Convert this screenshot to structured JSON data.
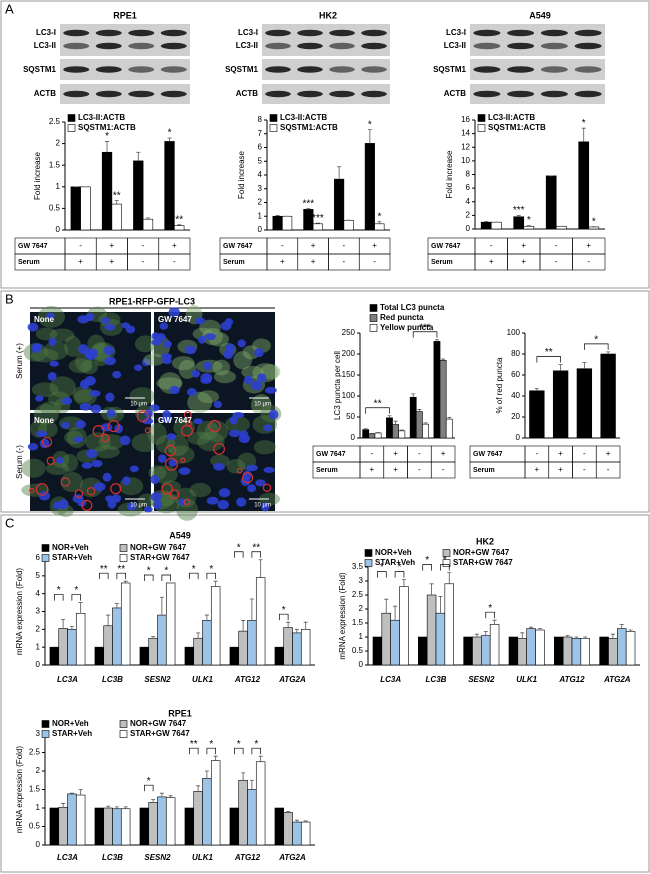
{
  "figure": {
    "panels": [
      "A",
      "B",
      "C"
    ],
    "blots": [
      {
        "labels": [
          "LC3-I",
          "LC3-II",
          "SQSTM1",
          "ACTB"
        ]
      },
      {
        "labels": [
          "LC3-I",
          "LC3-II",
          "SQSTM1",
          "ACTB"
        ]
      },
      {
        "labels": [
          "LC3-I",
          "LC3-II",
          "SQSTM1",
          "ACTB"
        ]
      }
    ],
    "microscopy": {
      "title": "RPE1-RFP-GFP-LC3",
      "image_labels": [
        "None",
        "GW 7647",
        "None",
        "GW 7647"
      ],
      "row_labels": [
        "Serum (+)",
        "Serum (-)"
      ],
      "scale_bar": "10 μm"
    }
  },
  "chart_data": [
    {
      "type": "bar",
      "title": "RPE1",
      "y_label": "Fold increase",
      "conditions": {
        "labels": [
          "GW 7647",
          "Serum"
        ],
        "rows": [
          [
            "-",
            "+",
            "-",
            "+"
          ],
          [
            "+",
            "+",
            "-",
            "-"
          ]
        ]
      },
      "series": [
        {
          "name": "LC3-II:ACTB",
          "color": "#000000",
          "values": [
            1,
            1.8,
            1.6,
            2.05
          ],
          "errors": [
            0,
            0.25,
            0.2,
            0.08
          ]
        },
        {
          "name": "SQSTM1:ACTB",
          "color": "#ffffff",
          "values": [
            1,
            0.6,
            0.25,
            0.1
          ],
          "errors": [
            0,
            0.08,
            0.03,
            0.02
          ]
        }
      ],
      "ylim": [
        0,
        2.5
      ],
      "yticks": [
        0,
        0.5,
        1,
        1.5,
        2,
        2.5
      ],
      "annotations": [
        {
          "text": "*",
          "series": 0,
          "category": 1
        },
        {
          "text": "**",
          "series": 1,
          "category": 1
        },
        {
          "text": "*",
          "series": 0,
          "category": 3
        },
        {
          "text": "**",
          "series": 1,
          "category": 3
        }
      ]
    },
    {
      "type": "bar",
      "title": "HK2",
      "y_label": "Fold increase",
      "conditions": {
        "labels": [
          "GW 7647",
          "Serum"
        ],
        "rows": [
          [
            "-",
            "+",
            "-",
            "+"
          ],
          [
            "+",
            "+",
            "-",
            "-"
          ]
        ]
      },
      "series": [
        {
          "name": "LC3-II:ACTB",
          "color": "#000000",
          "values": [
            1,
            1.5,
            3.7,
            6.3
          ],
          "errors": [
            0.05,
            0.05,
            0.9,
            1.0
          ]
        },
        {
          "name": "SQSTM1:ACTB",
          "color": "#ffffff",
          "values": [
            1,
            0.45,
            0.7,
            0.45
          ],
          "errors": [
            0,
            0.05,
            0.02,
            0.15
          ]
        }
      ],
      "ylim": [
        0,
        8
      ],
      "yticks": [
        0,
        1,
        2,
        3,
        4,
        5,
        6,
        7,
        8
      ],
      "annotations": [
        {
          "text": "***",
          "series": 0,
          "category": 1
        },
        {
          "text": "***",
          "series": 1,
          "category": 1
        },
        {
          "text": "*",
          "series": 0,
          "category": 3
        },
        {
          "text": "*",
          "series": 1,
          "category": 3
        }
      ]
    },
    {
      "type": "bar",
      "title": "A549",
      "y_label": "Fold increase",
      "conditions": {
        "labels": [
          "GW 7647",
          "Serum"
        ],
        "rows": [
          [
            "-",
            "+",
            "-",
            "+"
          ],
          [
            "+",
            "+",
            "-",
            "-"
          ]
        ]
      },
      "series": [
        {
          "name": "LC3-II:ACTB",
          "color": "#000000",
          "values": [
            1,
            1.8,
            7.8,
            12.8
          ],
          "errors": [
            0.1,
            0.2,
            0,
            2
          ]
        },
        {
          "name": "SQSTM1:ACTB",
          "color": "#ffffff",
          "values": [
            1,
            0.4,
            0.4,
            0.3
          ],
          "errors": [
            0,
            0.1,
            0,
            0.05
          ]
        }
      ],
      "ylim": [
        0,
        16
      ],
      "yticks": [
        0,
        2,
        4,
        6,
        8,
        10,
        12,
        14,
        16
      ],
      "annotations": [
        {
          "text": "***",
          "series": 0,
          "category": 1
        },
        {
          "text": "*",
          "series": 1,
          "category": 1
        },
        {
          "text": "*",
          "series": 0,
          "category": 3
        },
        {
          "text": "*",
          "series": 1,
          "category": 3
        }
      ]
    },
    {
      "type": "bar",
      "y_label": "LC3 puncta per cell",
      "conditions": {
        "labels": [
          "GW 7647",
          "Serum"
        ],
        "rows": [
          [
            "-",
            "+",
            "-",
            "+"
          ],
          [
            "+",
            "+",
            "-",
            "-"
          ]
        ]
      },
      "series": [
        {
          "name": "Total LC3 puncta",
          "color": "#000000",
          "values": [
            20,
            48,
            97,
            230
          ],
          "errors": [
            2,
            5,
            8,
            4
          ]
        },
        {
          "name": "Red puncta",
          "color": "#7f7f7f",
          "values": [
            10,
            32,
            63,
            185
          ],
          "errors": [
            1,
            8,
            5,
            3
          ]
        },
        {
          "name": "Yellow puncta",
          "color": "#ffffff",
          "values": [
            12,
            17,
            33,
            45
          ],
          "errors": [
            1,
            2,
            3,
            4
          ]
        }
      ],
      "ylim": [
        0,
        250
      ],
      "yticks": [
        0,
        50,
        100,
        150,
        200,
        250
      ],
      "brackets": [
        {
          "text": "**",
          "from": [
            0,
            0
          ],
          "to": [
            0,
            1
          ]
        },
        {
          "text": "***",
          "from": [
            0,
            2
          ],
          "to": [
            0,
            3
          ]
        }
      ]
    },
    {
      "type": "bar",
      "y_label": "% of red puncta",
      "conditions": {
        "labels": [
          "GW 7647",
          "Serum"
        ],
        "rows": [
          [
            "-",
            "+",
            "-",
            "+"
          ],
          [
            "+",
            "+",
            "-",
            "-"
          ]
        ]
      },
      "values": [
        45,
        64,
        66,
        80
      ],
      "errors": [
        2,
        6,
        6,
        2
      ],
      "color": "#000000",
      "ylim": [
        0,
        100
      ],
      "yticks": [
        0,
        20,
        40,
        60,
        80,
        100
      ],
      "brackets": [
        {
          "text": "**",
          "from": [
            0,
            0
          ],
          "to": [
            0,
            1
          ]
        },
        {
          "text": "*",
          "from": [
            0,
            2
          ],
          "to": [
            0,
            3
          ]
        }
      ]
    },
    {
      "type": "bar",
      "title": "A549",
      "y_label": "mRNA expression (Fold)",
      "categories": [
        "LC3A",
        "LC3B",
        "SESN2",
        "ULK1",
        "ATG12",
        "ATG2A"
      ],
      "series": [
        {
          "name": "NOR+Veh",
          "color": "#000000",
          "values": [
            1,
            1,
            1,
            1,
            1,
            1
          ]
        },
        {
          "name": "NOR+GW 7647",
          "color": "#bfbfbf",
          "values": [
            2.05,
            2.2,
            1.5,
            1.5,
            1.9,
            2.1
          ],
          "errors": [
            0.5,
            0.6,
            0.1,
            0.3,
            0.6,
            0.3
          ]
        },
        {
          "name": "STAR+Veh",
          "color": "#9dc3e6",
          "values": [
            2.0,
            3.2,
            2.8,
            2.5,
            2.5,
            1.8
          ],
          "errors": [
            0.15,
            0.25,
            1.0,
            0.3,
            1.2,
            0.2
          ]
        },
        {
          "name": "STAR+GW 7647",
          "color": "#ffffff",
          "values": [
            2.9,
            4.6,
            4.6,
            4.4,
            4.9,
            2.0
          ],
          "errors": [
            0.6,
            0.1,
            0,
            0.3,
            1.0,
            0.4
          ]
        }
      ],
      "ylim": [
        0,
        6
      ],
      "yticks": [
        0,
        1,
        2,
        3,
        4,
        5,
        6
      ],
      "brackets": [
        {
          "text": "*",
          "from": [
            0,
            0
          ],
          "to": [
            1,
            0
          ]
        },
        {
          "text": "*",
          "from": [
            2,
            0
          ],
          "to": [
            3,
            0
          ]
        },
        {
          "text": "**",
          "from": [
            0,
            1
          ],
          "to": [
            1,
            1
          ]
        },
        {
          "text": "**",
          "from": [
            2,
            1
          ],
          "to": [
            3,
            1
          ]
        },
        {
          "text": "*",
          "from": [
            0,
            2
          ],
          "to": [
            1,
            2
          ]
        },
        {
          "text": "*",
          "from": [
            2,
            2
          ],
          "to": [
            3,
            2
          ]
        },
        {
          "text": "*",
          "from": [
            0,
            3
          ],
          "to": [
            1,
            3
          ]
        },
        {
          "text": "*",
          "from": [
            2,
            3
          ],
          "to": [
            3,
            3
          ]
        },
        {
          "text": "*",
          "from": [
            0,
            4
          ],
          "to": [
            1,
            4
          ]
        },
        {
          "text": "**",
          "from": [
            2,
            4
          ],
          "to": [
            3,
            4
          ]
        },
        {
          "text": "*",
          "from": [
            0,
            5
          ],
          "to": [
            1,
            5
          ]
        }
      ]
    },
    {
      "type": "bar",
      "title": "HK2",
      "y_label": "mRNA expression (Fold)",
      "categories": [
        "LC3A",
        "LC3B",
        "SESN2",
        "ULK1",
        "ATG12",
        "ATG2A"
      ],
      "series": [
        {
          "name": "NOR+Veh",
          "color": "#000000",
          "values": [
            1,
            1,
            1,
            1,
            1,
            1
          ]
        },
        {
          "name": "NOR+GW 7647",
          "color": "#bfbfbf",
          "values": [
            1.85,
            2.5,
            1.0,
            0.95,
            1.0,
            0.95
          ],
          "errors": [
            0.5,
            0.4,
            0.1,
            0.2,
            0.05,
            0.15
          ]
        },
        {
          "name": "STAR+Veh",
          "color": "#9dc3e6",
          "values": [
            1.6,
            1.85,
            1.05,
            1.3,
            0.95,
            1.3
          ],
          "errors": [
            0.5,
            0.6,
            0.15,
            0.05,
            0.05,
            0.15
          ]
        },
        {
          "name": "STAR+GW 7647",
          "color": "#ffffff",
          "values": [
            2.8,
            2.9,
            1.45,
            1.25,
            0.95,
            1.2
          ],
          "errors": [
            0.25,
            0.4,
            0.15,
            0.05,
            0.05,
            0.05
          ]
        }
      ],
      "ylim": [
        0,
        3.5
      ],
      "yticks": [
        0,
        0.5,
        1,
        1.5,
        2,
        2.5,
        3,
        3.5
      ],
      "brackets": [
        {
          "text": "*",
          "from": [
            0,
            0
          ],
          "to": [
            1,
            0
          ]
        },
        {
          "text": "*",
          "from": [
            2,
            0
          ],
          "to": [
            3,
            0
          ]
        },
        {
          "text": "*",
          "from": [
            0,
            1
          ],
          "to": [
            1,
            1
          ]
        },
        {
          "text": "*",
          "from": [
            2,
            1
          ],
          "to": [
            3,
            1
          ]
        },
        {
          "text": "*",
          "from": [
            2,
            2
          ],
          "to": [
            3,
            2
          ]
        }
      ]
    },
    {
      "type": "bar",
      "title": "RPE1",
      "y_label": "mRNA expression (Fold)",
      "categories": [
        "LC3A",
        "LC3B",
        "SESN2",
        "ULK1",
        "ATG12",
        "ATG2A"
      ],
      "series": [
        {
          "name": "NOR+Veh",
          "color": "#000000",
          "values": [
            1,
            1,
            1,
            1,
            1,
            1
          ]
        },
        {
          "name": "NOR+GW 7647",
          "color": "#bfbfbf",
          "values": [
            1.02,
            1.0,
            1.15,
            1.45,
            1.75,
            0.88
          ],
          "errors": [
            0.1,
            0.05,
            0.08,
            0.15,
            0.2,
            0.02
          ]
        },
        {
          "name": "STAR+Veh",
          "color": "#9dc3e6",
          "values": [
            1.38,
            0.98,
            1.3,
            1.8,
            1.5,
            0.62
          ],
          "errors": [
            0.02,
            0.05,
            0.1,
            0.2,
            0.25,
            0.05
          ]
        },
        {
          "name": "STAR+GW 7647",
          "color": "#ffffff",
          "values": [
            1.35,
            0.98,
            1.28,
            2.28,
            2.25,
            0.62
          ],
          "errors": [
            0.15,
            0.05,
            0.05,
            0.12,
            0.15,
            0.03
          ]
        }
      ],
      "ylim": [
        0,
        3
      ],
      "yticks": [
        0,
        0.5,
        1,
        1.5,
        2,
        2.5,
        3
      ],
      "brackets": [
        {
          "text": "*",
          "from": [
            0,
            2
          ],
          "to": [
            1,
            2
          ]
        },
        {
          "text": "**",
          "from": [
            0,
            3
          ],
          "to": [
            1,
            3
          ]
        },
        {
          "text": "*",
          "from": [
            2,
            3
          ],
          "to": [
            3,
            3
          ]
        },
        {
          "text": "*",
          "from": [
            0,
            4
          ],
          "to": [
            1,
            4
          ]
        },
        {
          "text": "*",
          "from": [
            2,
            4
          ],
          "to": [
            3,
            4
          ]
        }
      ]
    }
  ]
}
